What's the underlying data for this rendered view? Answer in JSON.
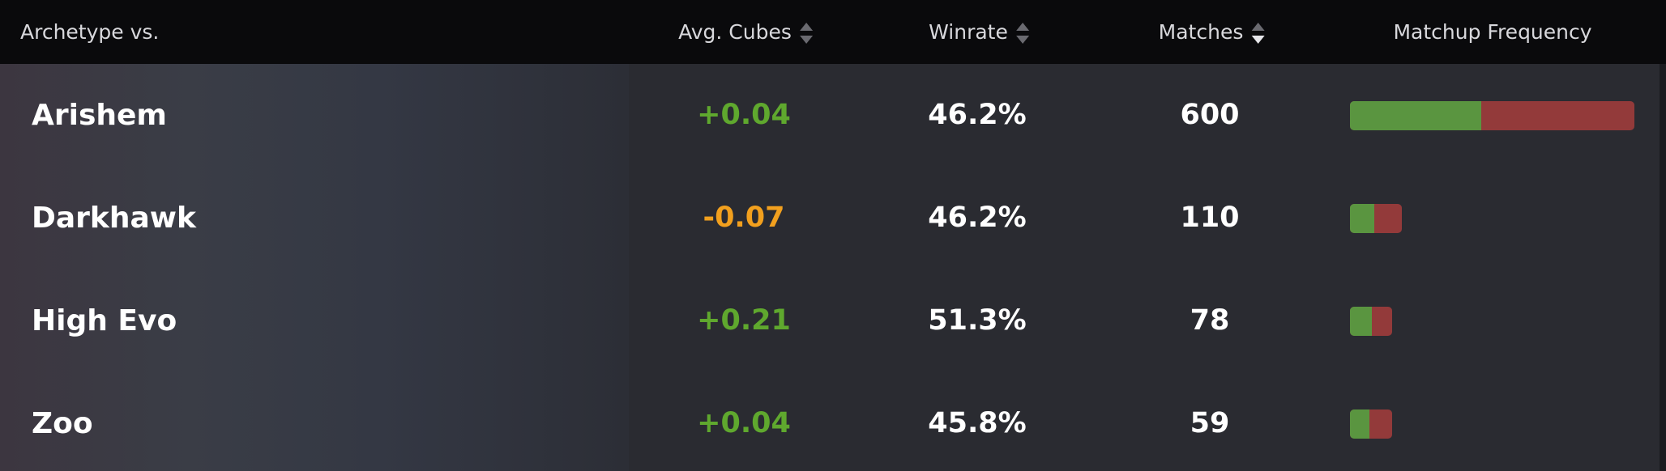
{
  "headers": [
    "Archetype vs.",
    "Avg. Cubes",
    "Winrate",
    "Matches",
    "Matchup Frequency"
  ],
  "rows": [
    {
      "name": "Arishem",
      "avg_cubes": "+0.04",
      "winrate": {
        "value": 46.2,
        "label": "46.2%"
      },
      "matches": 600
    },
    {
      "name": "Darkhawk",
      "avg_cubes": "-0.07",
      "winrate": {
        "value": 46.2,
        "label": "46.2%"
      },
      "matches": 110
    },
    {
      "name": "High Evo",
      "avg_cubes": "+0.21",
      "winrate": {
        "value": 51.3,
        "label": "51.3%"
      },
      "matches": 78
    },
    {
      "name": "Zoo",
      "avg_cubes": "+0.04",
      "winrate": {
        "value": 45.8,
        "label": "45.8%"
      },
      "matches": 59
    }
  ]
}
